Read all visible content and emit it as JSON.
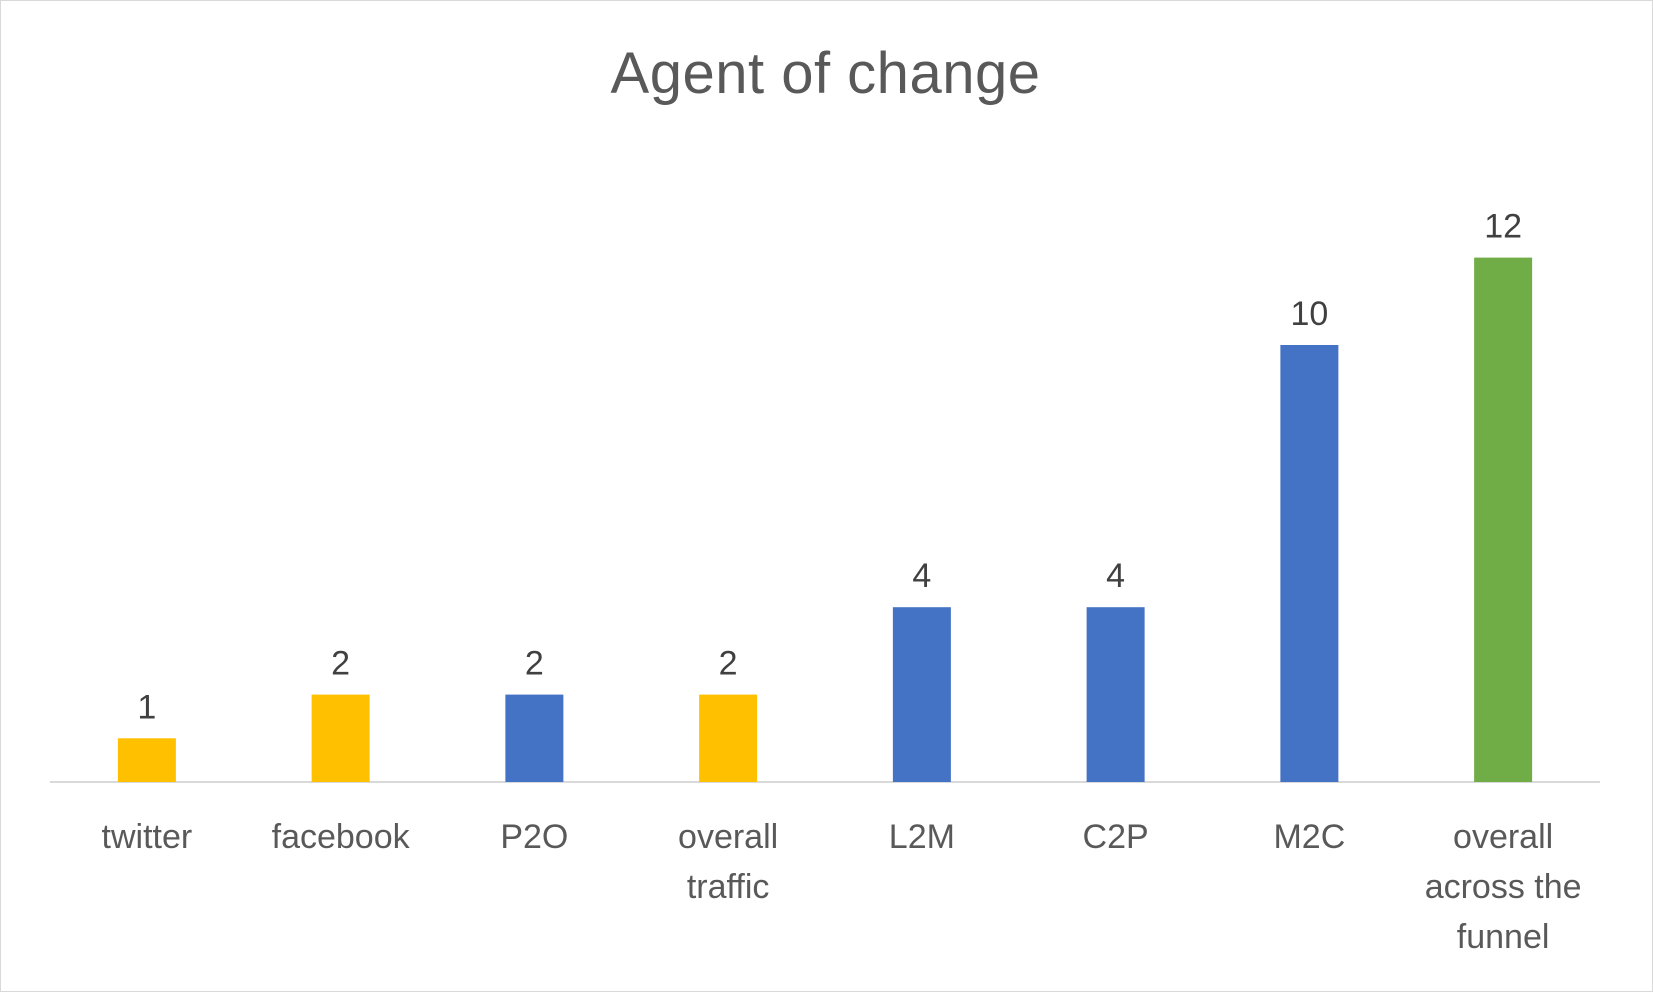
{
  "chart_data": {
    "type": "bar",
    "title": "Agent of change",
    "xlabel": "",
    "ylabel": "",
    "categories": [
      [
        "twitter"
      ],
      [
        "facebook"
      ],
      [
        "P2O"
      ],
      [
        "overall",
        "traffic"
      ],
      [
        "L2M"
      ],
      [
        "C2P"
      ],
      [
        "M2C"
      ],
      [
        "overall",
        "across the",
        "funnel"
      ]
    ],
    "values": [
      1,
      2,
      2,
      2,
      4,
      4,
      10,
      12
    ],
    "bar_colors": [
      "#FFC000",
      "#FFC000",
      "#4472C4",
      "#FFC000",
      "#4472C4",
      "#4472C4",
      "#4472C4",
      "#70AD47"
    ],
    "data_labels": [
      "1",
      "2",
      "2",
      "2",
      "4",
      "4",
      "10",
      "12"
    ],
    "ylim": [
      0,
      14
    ],
    "grid": false,
    "legend": "none",
    "axis_color": "#d9d9d9"
  }
}
